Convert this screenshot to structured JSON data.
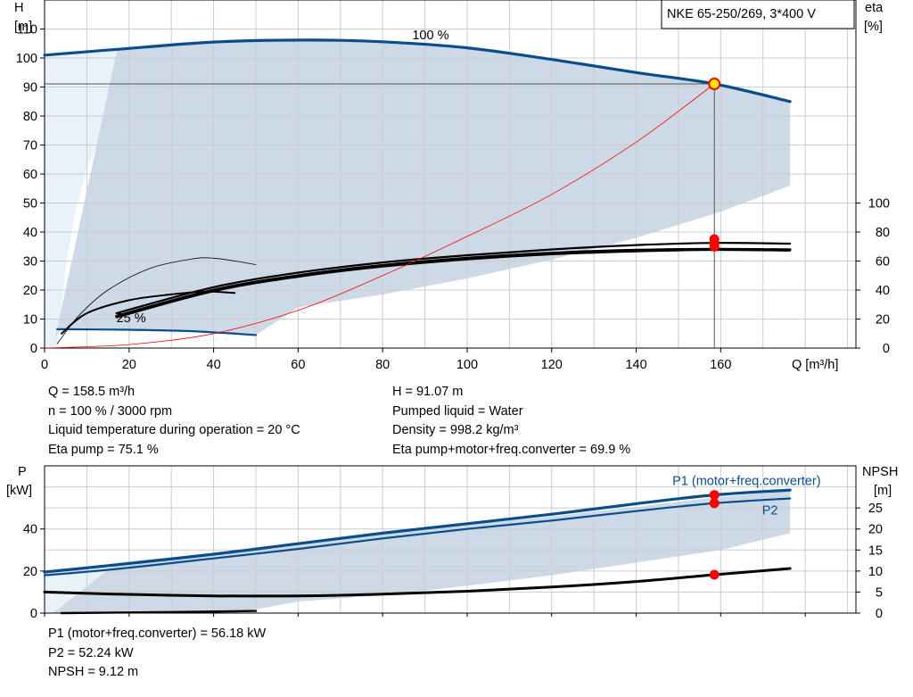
{
  "chart_data": [
    {
      "type": "line",
      "legend_box": "NKE 65-250/269, 3*400 V",
      "y_left_label": [
        "H",
        "[m]"
      ],
      "y_right_label": [
        "eta",
        "[%]"
      ],
      "x_unit_label": "Q [m³/h]",
      "xlim": [
        0,
        192
      ],
      "ylim": [
        0,
        120
      ],
      "eta_lim": [
        0,
        100
      ],
      "grid": true,
      "x_ticks": [
        0,
        20,
        40,
        60,
        80,
        100,
        120,
        140,
        160
      ],
      "y_ticks": [
        0,
        10,
        20,
        30,
        40,
        50,
        60,
        70,
        80,
        90,
        100,
        110
      ],
      "eta_ticks": [
        0,
        20,
        40,
        60,
        80,
        100
      ],
      "curve_labels": [
        {
          "text": "100 %",
          "x": 87,
          "y": 106.5
        },
        {
          "text": "25 %",
          "x": 17,
          "y": 9
        }
      ],
      "duty_point": {
        "Q": 158.5,
        "H": 91.07
      },
      "envelope": {
        "upper": [
          [
            17.2,
            103
          ],
          [
            40,
            105.5
          ],
          [
            62,
            106.2
          ],
          [
            80,
            105.6
          ],
          [
            100,
            103.5
          ],
          [
            120,
            99.5
          ],
          [
            140,
            95
          ],
          [
            158.5,
            91.07
          ],
          [
            176.4,
            85
          ]
        ],
        "lower": [
          [
            176.4,
            56
          ],
          [
            160,
            47
          ],
          [
            140,
            38
          ],
          [
            120,
            30.5
          ],
          [
            100,
            24
          ],
          [
            80,
            18.5
          ],
          [
            60,
            14
          ],
          [
            50,
            4.5
          ],
          [
            40,
            5.5
          ],
          [
            20,
            6.3
          ],
          [
            4,
            6.5
          ],
          [
            3,
            5
          ],
          [
            2,
            0
          ]
        ],
        "left_fill": [
          [
            0,
            101
          ],
          [
            17.2,
            103
          ],
          [
            17.2,
            85
          ],
          [
            10,
            62
          ],
          [
            7,
            45
          ],
          [
            5,
            28
          ],
          [
            3,
            0
          ],
          [
            0,
            0
          ]
        ]
      },
      "series": [
        {
          "role": "H",
          "values": [
            [
              0,
              101
            ],
            [
              17.2,
              103
            ],
            [
              40,
              105.5
            ],
            [
              62,
              106.2
            ],
            [
              80,
              105.6
            ],
            [
              100,
              103.5
            ],
            [
              120,
              99.5
            ],
            [
              140,
              95
            ],
            [
              158.5,
              91.07
            ],
            [
              176.4,
              85
            ]
          ]
        },
        {
          "role": "H",
          "values": [
            [
              3,
              6.5
            ],
            [
              20,
              6.3
            ],
            [
              35,
              5.8
            ],
            [
              50,
              4.5
            ]
          ]
        },
        {
          "role": "eta",
          "values": [
            [
              3,
              3
            ],
            [
              8,
              22
            ],
            [
              15,
              40
            ],
            [
              25,
              55
            ],
            [
              35,
              61.5
            ],
            [
              40,
              62
            ],
            [
              45,
              60
            ],
            [
              50,
              57.5
            ]
          ]
        },
        {
          "role": "eta",
          "values": [
            [
              4,
              10
            ],
            [
              10,
              24
            ],
            [
              20,
              33
            ],
            [
              30,
              37
            ],
            [
              38,
              39
            ],
            [
              45,
              38
            ]
          ]
        },
        {
          "role": "eta",
          "values": [
            [
              17,
              22
            ],
            [
              40,
              40
            ],
            [
              60,
              50
            ],
            [
              80,
              57
            ],
            [
              100,
              62
            ],
            [
              120,
              65.5
            ],
            [
              140,
              67.5
            ],
            [
              158.5,
              68.2
            ],
            [
              176.4,
              67.8
            ]
          ]
        },
        {
          "role": "eta",
          "values": [
            [
              17,
              24
            ],
            [
              40,
              42
            ],
            [
              60,
              52
            ],
            [
              80,
              59
            ],
            [
              100,
              64
            ],
            [
              120,
              68
            ],
            [
              140,
              71
            ],
            [
              158.5,
              72.5
            ],
            [
              176.4,
              72
            ]
          ]
        },
        {
          "role": "eta",
          "values": [
            [
              17,
              21
            ],
            [
              40,
              39
            ],
            [
              60,
              49
            ],
            [
              80,
              56
            ],
            [
              100,
              61
            ],
            [
              120,
              64.5
            ],
            [
              140,
              66.5
            ],
            [
              158.5,
              67.5
            ],
            [
              176.4,
              67
            ]
          ]
        },
        {
          "role": "H",
          "values": [
            [
              0,
              0
            ],
            [
              20,
              1.2
            ],
            [
              40,
              5
            ],
            [
              60,
              13
            ],
            [
              80,
              25
            ],
            [
              100,
              38.5
            ],
            [
              120,
              53
            ],
            [
              140,
              71
            ],
            [
              158.5,
              91.07
            ]
          ]
        }
      ],
      "markers": [
        {
          "Q": 158.5,
          "eta": 75.1
        },
        {
          "Q": 158.5,
          "eta": 72.5
        },
        {
          "Q": 158.5,
          "eta": 69.9
        }
      ]
    },
    {
      "type": "line",
      "y_left_label": [
        "P",
        "[kW]"
      ],
      "y_right_label": [
        "NPSH",
        "[m]"
      ],
      "xlim": [
        0,
        192
      ],
      "ylim": [
        0,
        70
      ],
      "npsh_lim": [
        0,
        35
      ],
      "grid": true,
      "y_ticks": [
        0,
        20,
        40
      ],
      "npsh_ticks": [
        0,
        5,
        10,
        15,
        20,
        25
      ],
      "curve_labels": [
        {
          "text": "P1 (motor+freq.converter)",
          "x": 157,
          "y": 63
        },
        {
          "text": "P2",
          "x": 174,
          "y": 49
        }
      ],
      "envelope": {
        "upper": [
          [
            17.2,
            24
          ],
          [
            40,
            28.5
          ],
          [
            60,
            33
          ],
          [
            80,
            37.5
          ],
          [
            100,
            42
          ],
          [
            120,
            46
          ],
          [
            140,
            50.5
          ],
          [
            158.5,
            55
          ],
          [
            176.4,
            58
          ]
        ],
        "lower": [
          [
            176.4,
            38
          ],
          [
            160,
            30
          ],
          [
            140,
            24
          ],
          [
            120,
            18
          ],
          [
            100,
            13
          ],
          [
            80,
            8.5
          ],
          [
            60,
            5.5
          ],
          [
            45,
            0
          ],
          [
            2,
            0
          ]
        ],
        "left_fill": [
          [
            0,
            19
          ],
          [
            17.2,
            24
          ],
          [
            17.2,
            14
          ],
          [
            10,
            8
          ],
          [
            4,
            0
          ],
          [
            0,
            0
          ]
        ]
      },
      "series": [
        {
          "name": "P1 (motor+freq.converter)",
          "values": [
            [
              0,
              19.5
            ],
            [
              17.2,
              23
            ],
            [
              40,
              28
            ],
            [
              60,
              33
            ],
            [
              80,
              38
            ],
            [
              100,
              42.5
            ],
            [
              120,
              47
            ],
            [
              140,
              52
            ],
            [
              158.5,
              56.18
            ],
            [
              176.4,
              58.5
            ]
          ]
        },
        {
          "name": "P2",
          "values": [
            [
              0,
              18
            ],
            [
              17.2,
              21
            ],
            [
              40,
              26
            ],
            [
              60,
              30.5
            ],
            [
              80,
              35.5
            ],
            [
              100,
              40
            ],
            [
              120,
              44
            ],
            [
              140,
              48.5
            ],
            [
              158.5,
              52.24
            ],
            [
              176.4,
              54.5
            ]
          ]
        },
        {
          "role": "NPSH",
          "values": [
            [
              0,
              5
            ],
            [
              17.2,
              4.5
            ],
            [
              40,
              4.1
            ],
            [
              60,
              4.1
            ],
            [
              80,
              4.5
            ],
            [
              100,
              5.2
            ],
            [
              120,
              6.2
            ],
            [
              140,
              7.5
            ],
            [
              158.5,
              9.12
            ],
            [
              176.4,
              10.6
            ]
          ]
        },
        {
          "role": "P",
          "values": [
            [
              4,
              0
            ],
            [
              20,
              0.3
            ],
            [
              35,
              0.6
            ],
            [
              50,
              1
            ]
          ]
        }
      ],
      "markers": [
        {
          "kind": "P",
          "value": 56.18
        },
        {
          "kind": "P",
          "value": 52.24
        },
        {
          "kind": "NPSH",
          "value": 9.12
        }
      ]
    }
  ],
  "operating_info": {
    "left": [
      "Q = 158.5 m³/h",
      "n = 100 % / 3000 rpm",
      "Liquid temperature during operation = 20 °C",
      "Eta pump = 75.1 %"
    ],
    "right": [
      "H = 91.07 m",
      "Pumped liquid = Water",
      "Density = 998.2 kg/m³",
      "Eta pump+motor+freq.converter = 69.9 %"
    ]
  },
  "power_info": [
    "P1 (motor+freq.converter) = 56.18 kW",
    "P2 = 52.24 kW",
    "NPSH = 9.12 m"
  ]
}
